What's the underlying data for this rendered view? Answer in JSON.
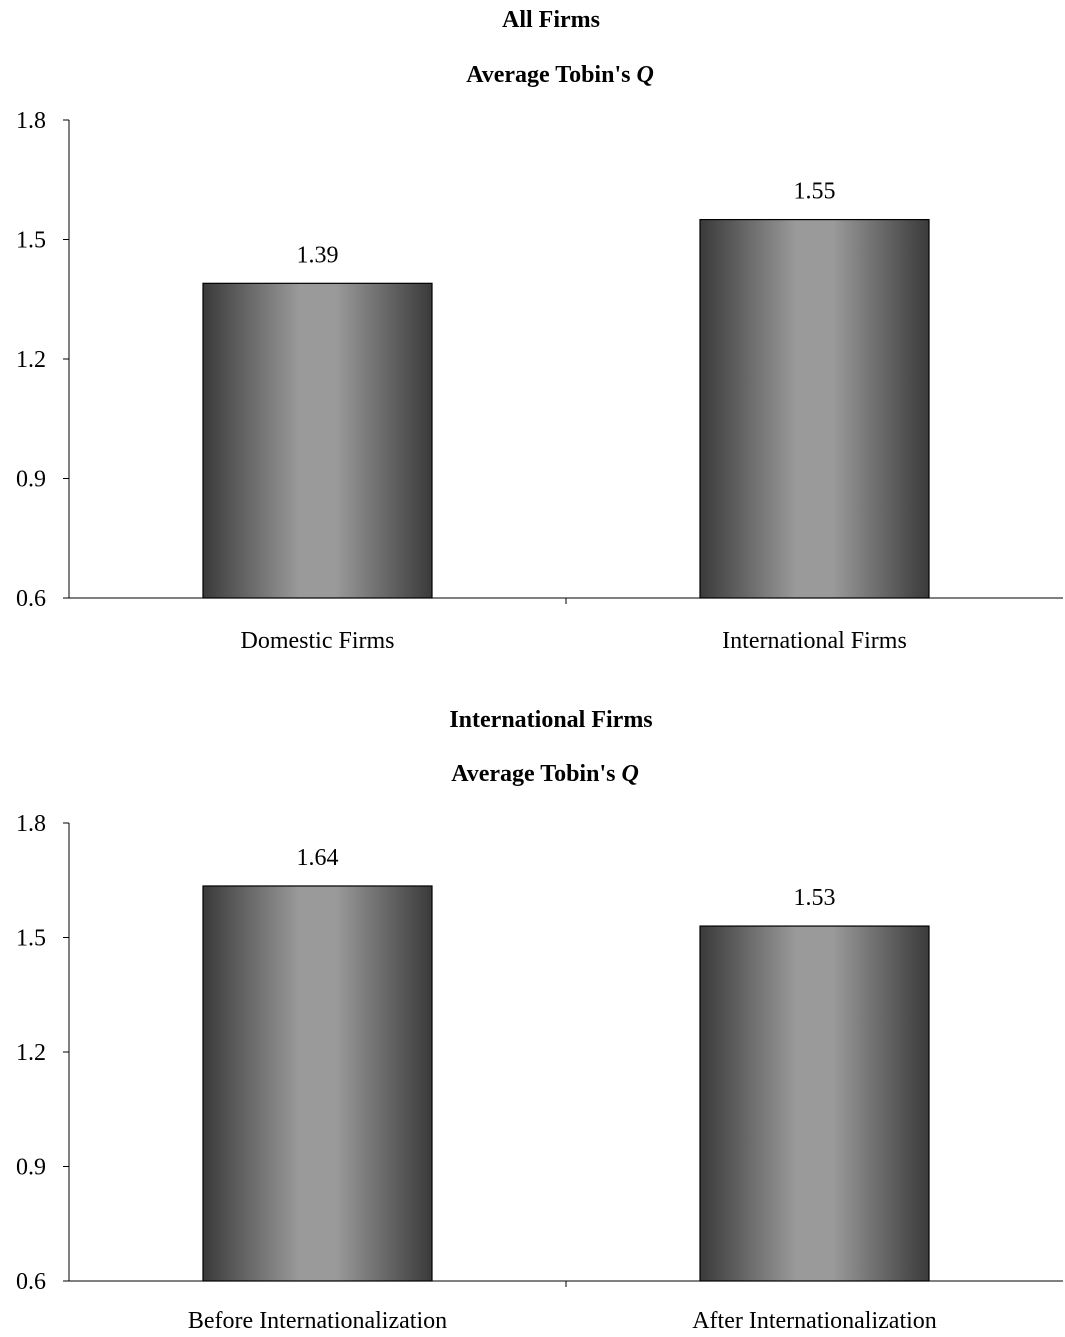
{
  "chart_data": [
    {
      "type": "bar",
      "title": "All Firms",
      "subtitle_prefix": "Average Tobin's ",
      "subtitle_emphasis": "Q",
      "categories": [
        "Domestic Firms",
        "International Firms"
      ],
      "values": [
        1.39,
        1.55
      ],
      "value_labels": [
        "1.39",
        "1.55"
      ],
      "ylim": [
        0.6,
        1.8
      ],
      "yticks": [
        0.6,
        0.9,
        1.2,
        1.5,
        1.8
      ],
      "ytick_labels": [
        "0.6",
        "0.9",
        "1.2",
        "1.5",
        "1.8"
      ],
      "grid": false,
      "legend": "none"
    },
    {
      "type": "bar",
      "title": "International Firms",
      "subtitle_prefix": "Average Tobin's ",
      "subtitle_emphasis": "Q",
      "categories": [
        "Before Internationalization",
        "After Internationalization"
      ],
      "values": [
        1.635,
        1.53
      ],
      "value_labels": [
        "1.64",
        "1.53"
      ],
      "ylim": [
        0.6,
        1.8
      ],
      "yticks": [
        0.6,
        0.9,
        1.2,
        1.5,
        1.8
      ],
      "ytick_labels": [
        "0.6",
        "0.9",
        "1.2",
        "1.5",
        "1.8"
      ],
      "grid": false,
      "legend": "none"
    }
  ],
  "colors": {
    "bar_edge": "#3a3a3a",
    "bar_center": "#9a9a9a"
  }
}
